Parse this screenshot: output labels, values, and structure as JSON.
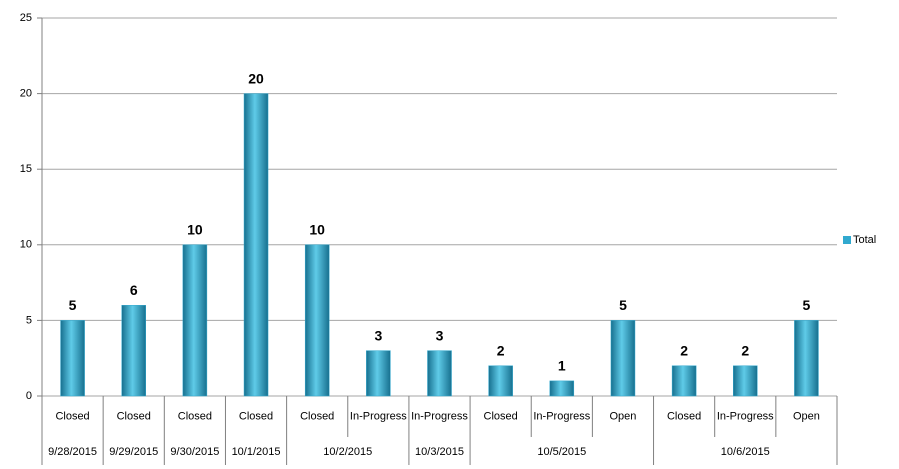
{
  "chart_data": {
    "type": "bar",
    "categories": [
      "Closed",
      "Closed",
      "Closed",
      "Closed",
      "Closed",
      "In-Progress",
      "In-Progress",
      "Closed",
      "In-Progress",
      "Open",
      "Closed",
      "In-Progress",
      "Open"
    ],
    "category_groups": [
      "9/28/2015",
      "9/29/2015",
      "9/30/2015",
      "10/1/2015",
      "10/2/2015",
      "10/2/2015",
      "10/3/2015",
      "10/5/2015",
      "10/5/2015",
      "10/5/2015",
      "10/6/2015",
      "10/6/2015",
      "10/6/2015"
    ],
    "series": [
      {
        "name": "Total",
        "color": "#31a9cf",
        "values": [
          5,
          6,
          10,
          20,
          10,
          3,
          3,
          2,
          1,
          5,
          2,
          2,
          5
        ]
      }
    ],
    "ylim": [
      0,
      25
    ],
    "yticks": [
      0,
      5,
      10,
      15,
      20,
      25
    ],
    "grid": true,
    "legend": "right",
    "data_labels": true
  }
}
